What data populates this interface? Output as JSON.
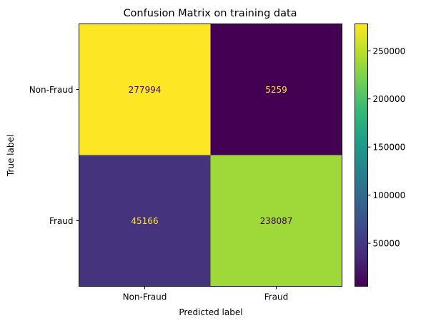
{
  "chart_data": {
    "type": "heatmap",
    "title": "Confusion Matrix on training data",
    "xlabel": "Predicted label",
    "ylabel": "True label",
    "x_categories": [
      "Non-Fraud",
      "Fraud"
    ],
    "y_categories": [
      "Non-Fraud",
      "Fraud"
    ],
    "values": [
      [
        277994,
        5259
      ],
      [
        45166,
        238087
      ]
    ],
    "value_labels": [
      [
        "277994",
        "5259"
      ],
      [
        "45166",
        "238087"
      ]
    ],
    "colormap": "viridis",
    "colorbar": {
      "min": 5259,
      "max": 277994,
      "ticks": [
        50000,
        100000,
        150000,
        200000,
        250000
      ],
      "tick_labels": [
        "50000",
        "100000",
        "150000",
        "200000",
        "250000"
      ]
    },
    "grid": false
  }
}
